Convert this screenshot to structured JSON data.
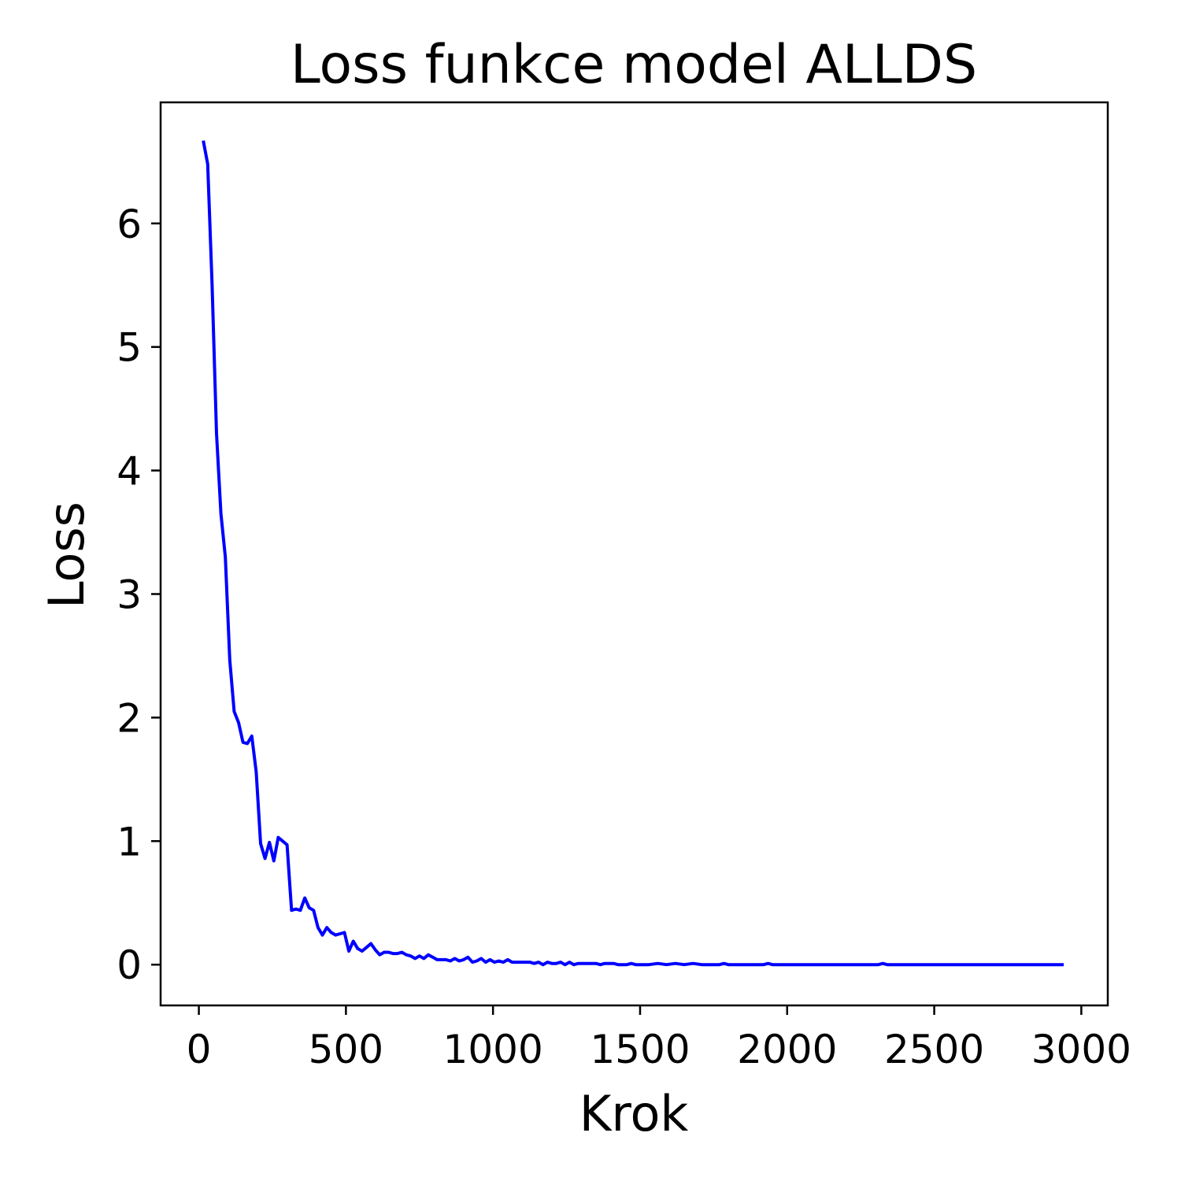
{
  "chart_data": {
    "type": "line",
    "title": "Loss funkce model ALLDS",
    "xlabel": "Krok",
    "ylabel": "Loss",
    "xlim": [
      -130,
      3090
    ],
    "ylim": [
      -0.33,
      6.98
    ],
    "x_ticks": [
      0,
      500,
      1000,
      1500,
      2000,
      2500,
      3000
    ],
    "x_tick_labels": [
      "0",
      "500",
      "1000",
      "1500",
      "2000",
      "2500",
      "3000"
    ],
    "y_ticks": [
      0,
      1,
      2,
      3,
      4,
      5,
      6
    ],
    "y_tick_labels": [
      "0",
      "1",
      "2",
      "3",
      "4",
      "5",
      "6"
    ],
    "grid": false,
    "legend": false,
    "colors": {
      "line": "#0000ff",
      "axes": "#000000",
      "background": "#ffffff"
    },
    "series": [
      {
        "x": [
          15,
          30,
          45,
          60,
          75,
          90,
          105,
          120,
          135,
          150,
          165,
          180,
          195,
          210,
          225,
          240,
          255,
          270,
          285,
          300,
          315,
          330,
          345,
          360,
          375,
          390,
          405,
          420,
          435,
          450,
          465,
          480,
          495,
          510,
          525,
          540,
          555,
          570,
          585,
          600,
          615,
          630,
          645,
          660,
          675,
          690,
          705,
          720,
          735,
          750,
          765,
          780,
          795,
          810,
          825,
          840,
          855,
          870,
          885,
          900,
          915,
          930,
          945,
          960,
          975,
          990,
          1005,
          1020,
          1035,
          1050,
          1065,
          1080,
          1095,
          1110,
          1125,
          1140,
          1155,
          1170,
          1185,
          1200,
          1215,
          1230,
          1245,
          1260,
          1275,
          1290,
          1305,
          1320,
          1335,
          1350,
          1365,
          1380,
          1395,
          1410,
          1425,
          1440,
          1455,
          1470,
          1485,
          1500,
          1530,
          1560,
          1590,
          1620,
          1650,
          1680,
          1710,
          1740,
          1770,
          1785,
          1800,
          1830,
          1860,
          1890,
          1920,
          1935,
          1950,
          1980,
          2010,
          2040,
          2070,
          2100,
          2130,
          2160,
          2190,
          2220,
          2250,
          2280,
          2310,
          2325,
          2340,
          2400,
          2500,
          2600,
          2700,
          2800,
          2900,
          2940
        ],
        "y": [
          6.67,
          6.48,
          5.5,
          4.3,
          3.65,
          3.3,
          2.47,
          2.05,
          1.96,
          1.8,
          1.79,
          1.85,
          1.56,
          0.98,
          0.86,
          0.99,
          0.84,
          1.03,
          1.0,
          0.97,
          0.44,
          0.45,
          0.44,
          0.54,
          0.46,
          0.44,
          0.3,
          0.24,
          0.3,
          0.26,
          0.24,
          0.25,
          0.26,
          0.11,
          0.19,
          0.13,
          0.11,
          0.14,
          0.17,
          0.12,
          0.08,
          0.1,
          0.1,
          0.09,
          0.09,
          0.1,
          0.08,
          0.07,
          0.05,
          0.07,
          0.05,
          0.08,
          0.06,
          0.04,
          0.04,
          0.04,
          0.03,
          0.05,
          0.03,
          0.04,
          0.06,
          0.02,
          0.03,
          0.05,
          0.02,
          0.04,
          0.02,
          0.03,
          0.02,
          0.04,
          0.02,
          0.02,
          0.02,
          0.02,
          0.02,
          0.01,
          0.02,
          0.0,
          0.02,
          0.01,
          0.01,
          0.02,
          0.0,
          0.02,
          0.0,
          0.01,
          0.01,
          0.01,
          0.01,
          0.01,
          0.0,
          0.01,
          0.01,
          0.01,
          0.0,
          0.0,
          0.0,
          0.01,
          0.0,
          0.0,
          0.0,
          0.01,
          0.0,
          0.01,
          0.0,
          0.01,
          0.0,
          0.0,
          0.0,
          0.01,
          0.0,
          0.0,
          0.0,
          0.0,
          0.0,
          0.01,
          0.0,
          0.0,
          0.0,
          0.0,
          0.0,
          0.0,
          0.0,
          0.0,
          0.0,
          0.0,
          0.0,
          0.0,
          0.0,
          0.01,
          0.0,
          0.0,
          0.0,
          0.0,
          0.0,
          0.0,
          0.0,
          0.0
        ]
      }
    ]
  }
}
